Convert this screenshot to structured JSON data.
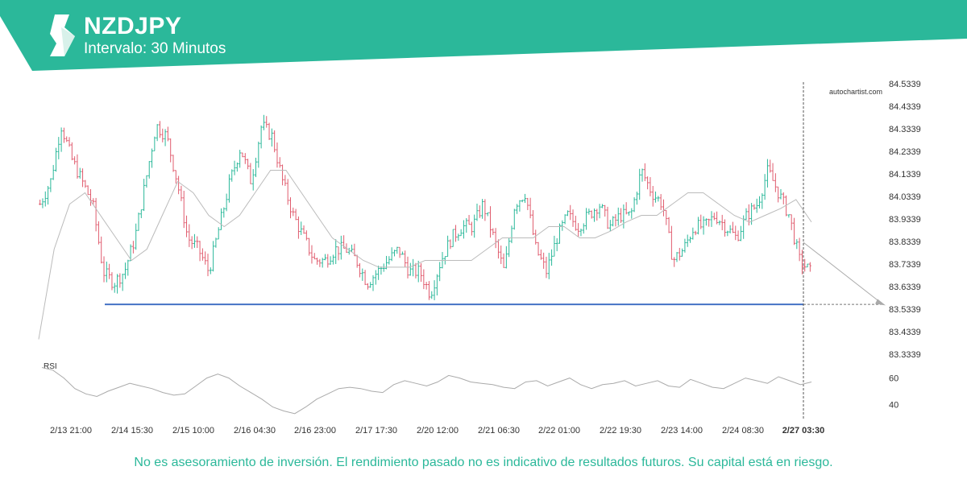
{
  "header": {
    "symbol": "NZDJPY",
    "interval_label": "Intervalo: 30 Minutos",
    "brand_color": "#2bb89a"
  },
  "watermark": "autochartist.com",
  "disclaimer": "No es asesoramiento de inversión. El rendimiento pasado no es indicativo de resultados futuros. Su capital está en riesgo.",
  "chart_data": [
    {
      "type": "ohlc",
      "series_name": "NZDJPY",
      "y_ticks": [
        "84.5339",
        "84.4339",
        "84.3339",
        "84.2339",
        "84.1339",
        "84.0339",
        "83.9339",
        "83.8339",
        "83.7339",
        "83.6339",
        "83.5339",
        "83.4339",
        "83.3339"
      ],
      "ylim": [
        83.3339,
        84.5339
      ],
      "x_ticks": [
        "2/13 21:00",
        "2/14 15:30",
        "2/15 10:00",
        "2/16 04:30",
        "2/16 23:00",
        "2/17 17:30",
        "2/20 12:00",
        "2/21 06:30",
        "2/22 01:00",
        "2/22 19:30",
        "2/23 14:00",
        "2/24 08:30",
        "2/27 03:30"
      ],
      "current_time_label": "2/27 03:30",
      "close_path": [
        84.0,
        84.1,
        84.35,
        84.2,
        84.1,
        84.0,
        83.7,
        83.65,
        83.7,
        83.85,
        84.1,
        84.35,
        84.3,
        84.1,
        83.85,
        83.8,
        83.7,
        83.9,
        84.1,
        84.25,
        84.1,
        84.35,
        84.3,
        84.1,
        83.95,
        83.85,
        83.75,
        83.75,
        83.8,
        83.8,
        83.75,
        83.65,
        83.7,
        83.75,
        83.8,
        83.7,
        83.7,
        83.6,
        83.75,
        83.85,
        83.9,
        83.9,
        84.0,
        83.85,
        83.7,
        84.0,
        84.05,
        83.8,
        83.7,
        83.85,
        83.95,
        83.9,
        83.95,
        84.0,
        83.9,
        83.95,
        83.95,
        84.15,
        84.05,
        84.0,
        83.75,
        83.8,
        83.9,
        83.9,
        83.95,
        83.9,
        83.85,
        83.95,
        84.0,
        84.15,
        84.05,
        83.95,
        83.75,
        83.7
      ],
      "ma_path": [
        83.4,
        83.8,
        84.0,
        84.05,
        83.95,
        83.85,
        83.75,
        83.8,
        83.95,
        84.1,
        84.05,
        83.95,
        83.9,
        83.95,
        84.05,
        84.15,
        84.15,
        84.05,
        83.95,
        83.85,
        83.8,
        83.75,
        83.72,
        83.72,
        83.72,
        83.75,
        83.75,
        83.75,
        83.75,
        83.8,
        83.85,
        83.85,
        83.85,
        83.9,
        83.9,
        83.85,
        83.85,
        83.88,
        83.92,
        83.95,
        83.95,
        84.0,
        84.05,
        84.05,
        84.0,
        83.95,
        83.92,
        83.95,
        83.98,
        84.02,
        83.92
      ],
      "support_level": 83.555,
      "support_start_label": "2/14 06:00",
      "forecast_target": 83.554,
      "rsi": {
        "label": "RSI",
        "y_ticks": [
          "60",
          "40"
        ],
        "ylim": [
          28,
          72
        ],
        "values": [
          68,
          66,
          60,
          52,
          48,
          46,
          50,
          53,
          56,
          54,
          52,
          49,
          47,
          48,
          54,
          60,
          63,
          60,
          54,
          49,
          44,
          38,
          35,
          33,
          38,
          44,
          48,
          52,
          53,
          52,
          50,
          49,
          55,
          58,
          56,
          54,
          57,
          62,
          60,
          57,
          56,
          55,
          53,
          52,
          57,
          58,
          54,
          57,
          60,
          55,
          52,
          55,
          56,
          58,
          54,
          56,
          58,
          54,
          53,
          59,
          56,
          53,
          52,
          56,
          60,
          58,
          56,
          61,
          58,
          55,
          57
        ]
      }
    }
  ]
}
